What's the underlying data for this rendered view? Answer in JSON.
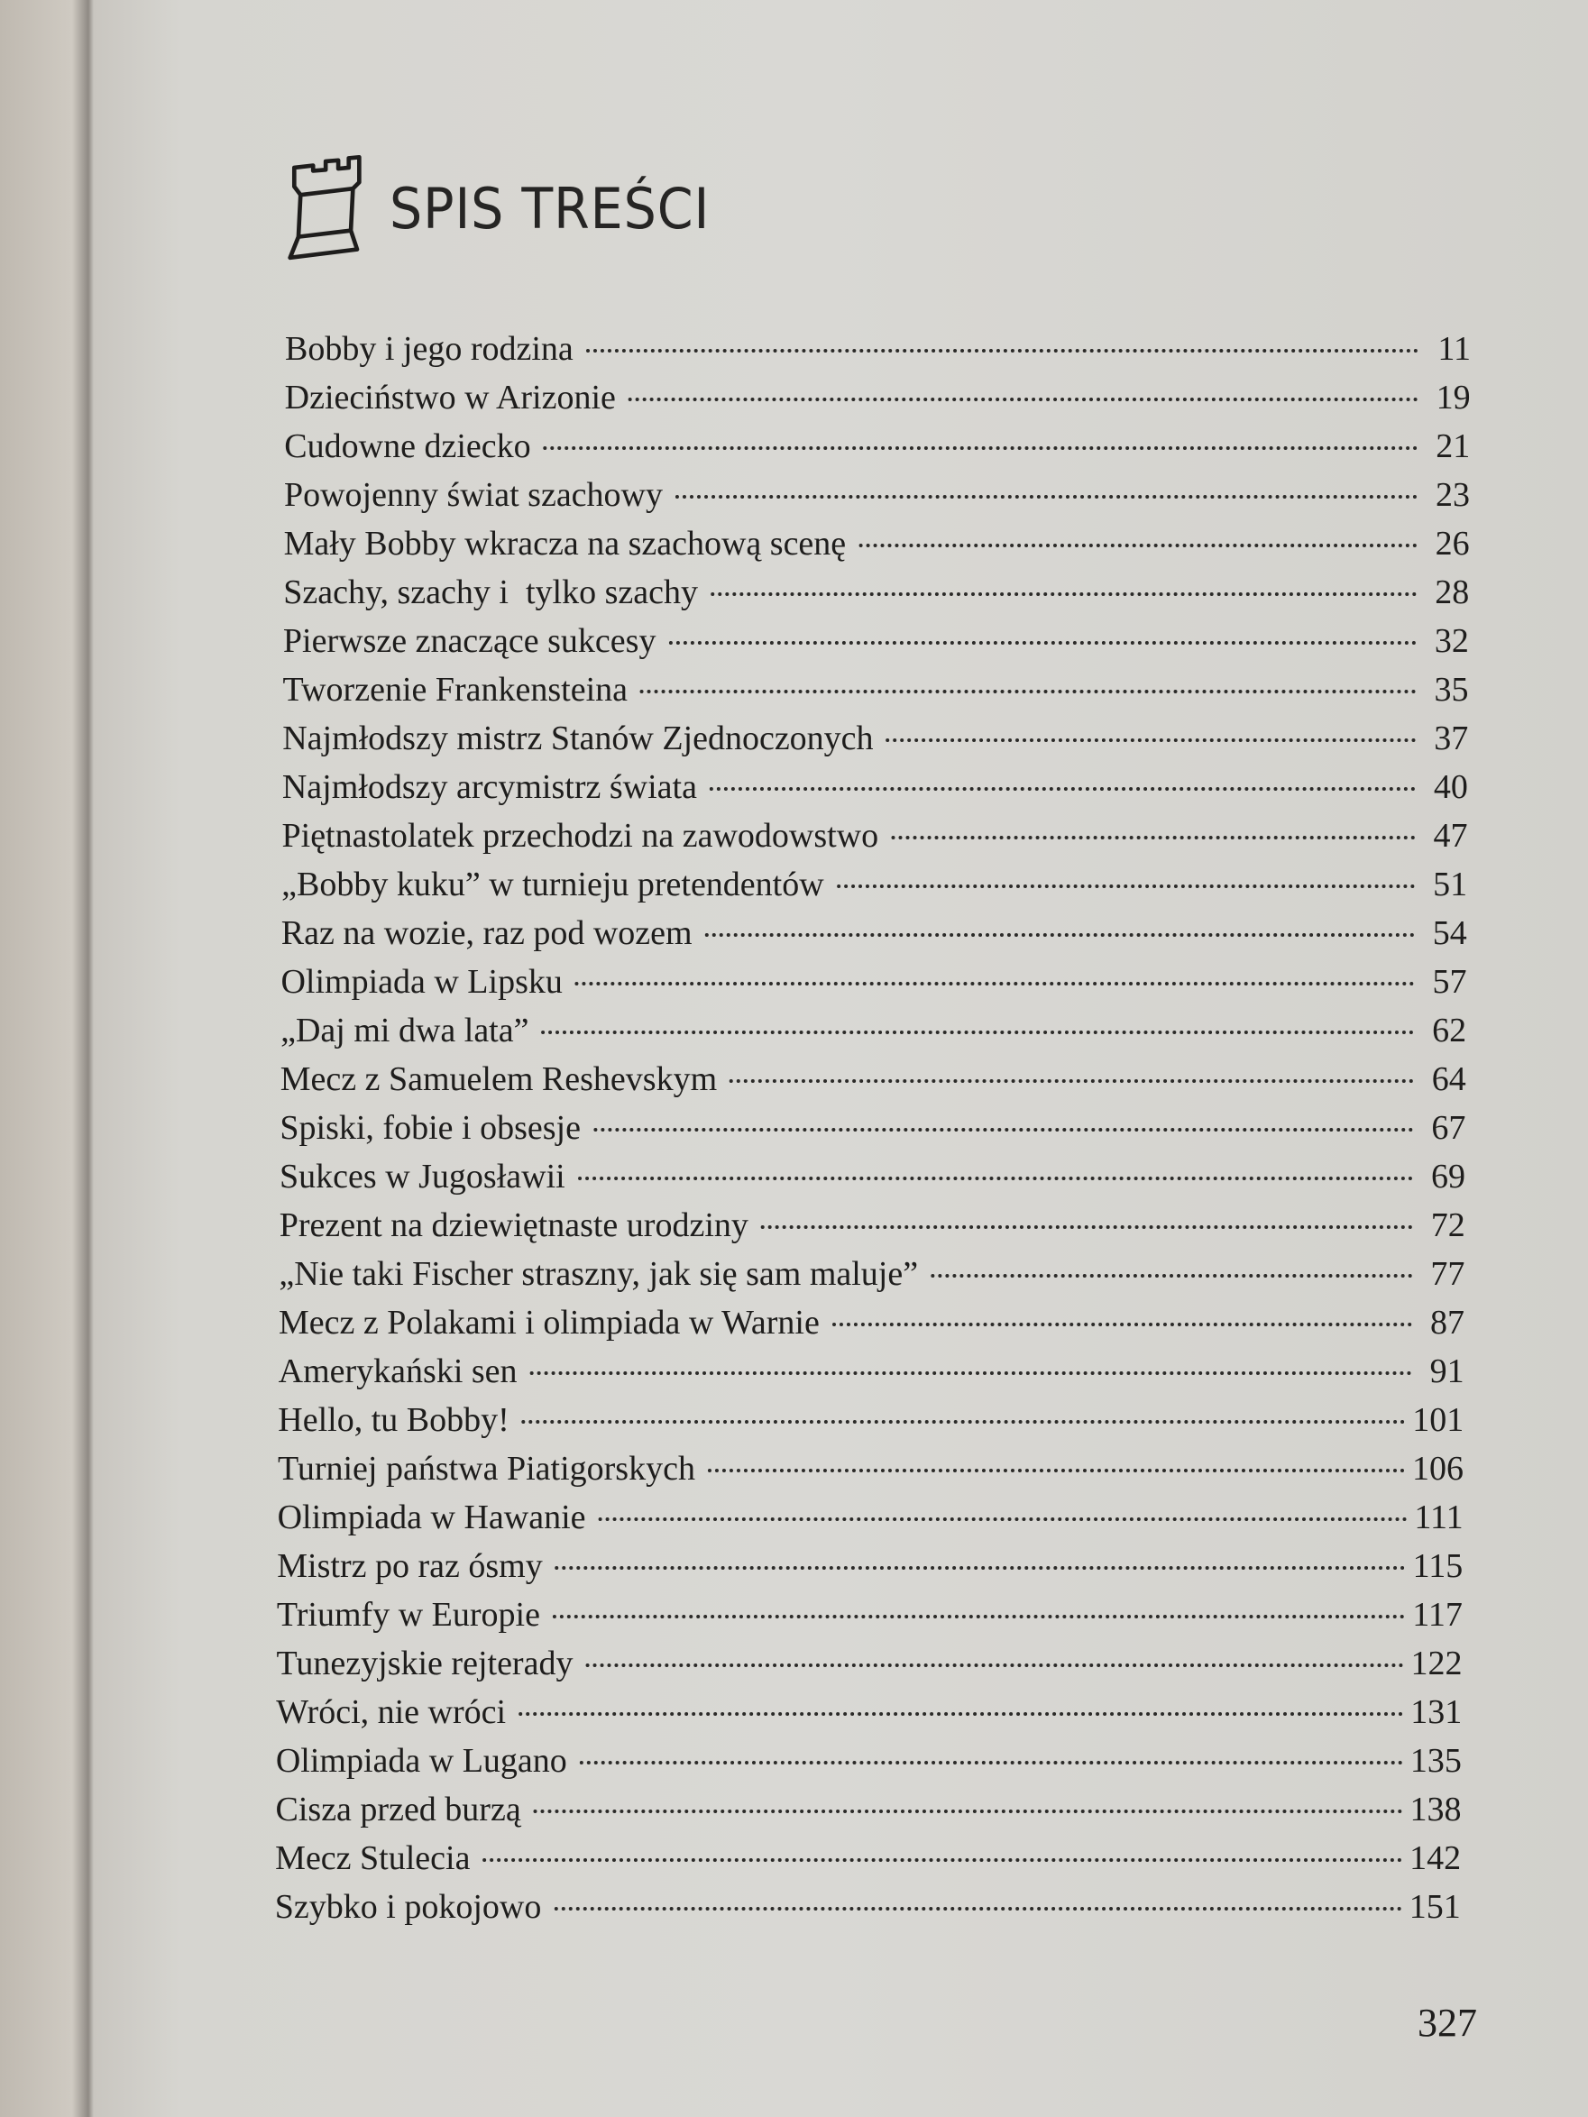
{
  "header": {
    "title": "SPIS TREŚCI",
    "icon": "chess-rook-icon"
  },
  "entries": [
    {
      "title": "Bobby i jego rodzina",
      "page": "11"
    },
    {
      "title": "Dzieciństwo w Arizonie",
      "page": "19"
    },
    {
      "title": "Cudowne dziecko",
      "page": "21"
    },
    {
      "title": "Powojenny świat szachowy",
      "page": "23"
    },
    {
      "title": "Mały Bobby wkracza na szachową scenę",
      "page": "26"
    },
    {
      "title": "Szachy, szachy i  tylko szachy",
      "page": "28"
    },
    {
      "title": "Pierwsze znaczące sukcesy",
      "page": "32"
    },
    {
      "title": "Tworzenie Frankensteina",
      "page": "35"
    },
    {
      "title": "Najmłodszy mistrz Stanów Zjednoczonych",
      "page": "37"
    },
    {
      "title": "Najmłodszy arcymistrz świata",
      "page": "40"
    },
    {
      "title": "Piętnastolatek przechodzi na zawodowstwo",
      "page": "47"
    },
    {
      "title": "„Bobby kuku” w turnieju pretendentów",
      "page": "51"
    },
    {
      "title": "Raz na wozie, raz pod wozem",
      "page": "54"
    },
    {
      "title": "Olimpiada w Lipsku",
      "page": "57"
    },
    {
      "title": "„Daj mi dwa lata”",
      "page": "62"
    },
    {
      "title": "Mecz z Samuelem Reshevskym",
      "page": "64"
    },
    {
      "title": "Spiski, fobie i obsesje",
      "page": "67"
    },
    {
      "title": "Sukces w Jugosławii",
      "page": "69"
    },
    {
      "title": "Prezent na dziewiętnaste urodziny",
      "page": "72"
    },
    {
      "title": "„Nie taki Fischer straszny, jak się sam maluje”",
      "page": "77"
    },
    {
      "title": "Mecz z Polakami i olimpiada w Warnie",
      "page": "87"
    },
    {
      "title": "Amerykański sen",
      "page": "91"
    },
    {
      "title": "Hello, tu Bobby!",
      "page": "101"
    },
    {
      "title": "Turniej państwa Piatigorskych",
      "page": "106"
    },
    {
      "title": "Olimpiada w Hawanie",
      "page": "111"
    },
    {
      "title": "Mistrz po raz ósmy",
      "page": "115"
    },
    {
      "title": "Triumfy w Europie",
      "page": "117"
    },
    {
      "title": "Tunezyjskie rejterady",
      "page": "122"
    },
    {
      "title": "Wróci, nie wróci",
      "page": "131"
    },
    {
      "title": "Olimpiada w Lugano",
      "page": "135"
    },
    {
      "title": "Cisza przed burzą",
      "page": "138"
    },
    {
      "title": "Mecz Stulecia",
      "page": "142"
    },
    {
      "title": "Szybko i pokojowo",
      "page": "151"
    }
  ],
  "page_number": "327"
}
